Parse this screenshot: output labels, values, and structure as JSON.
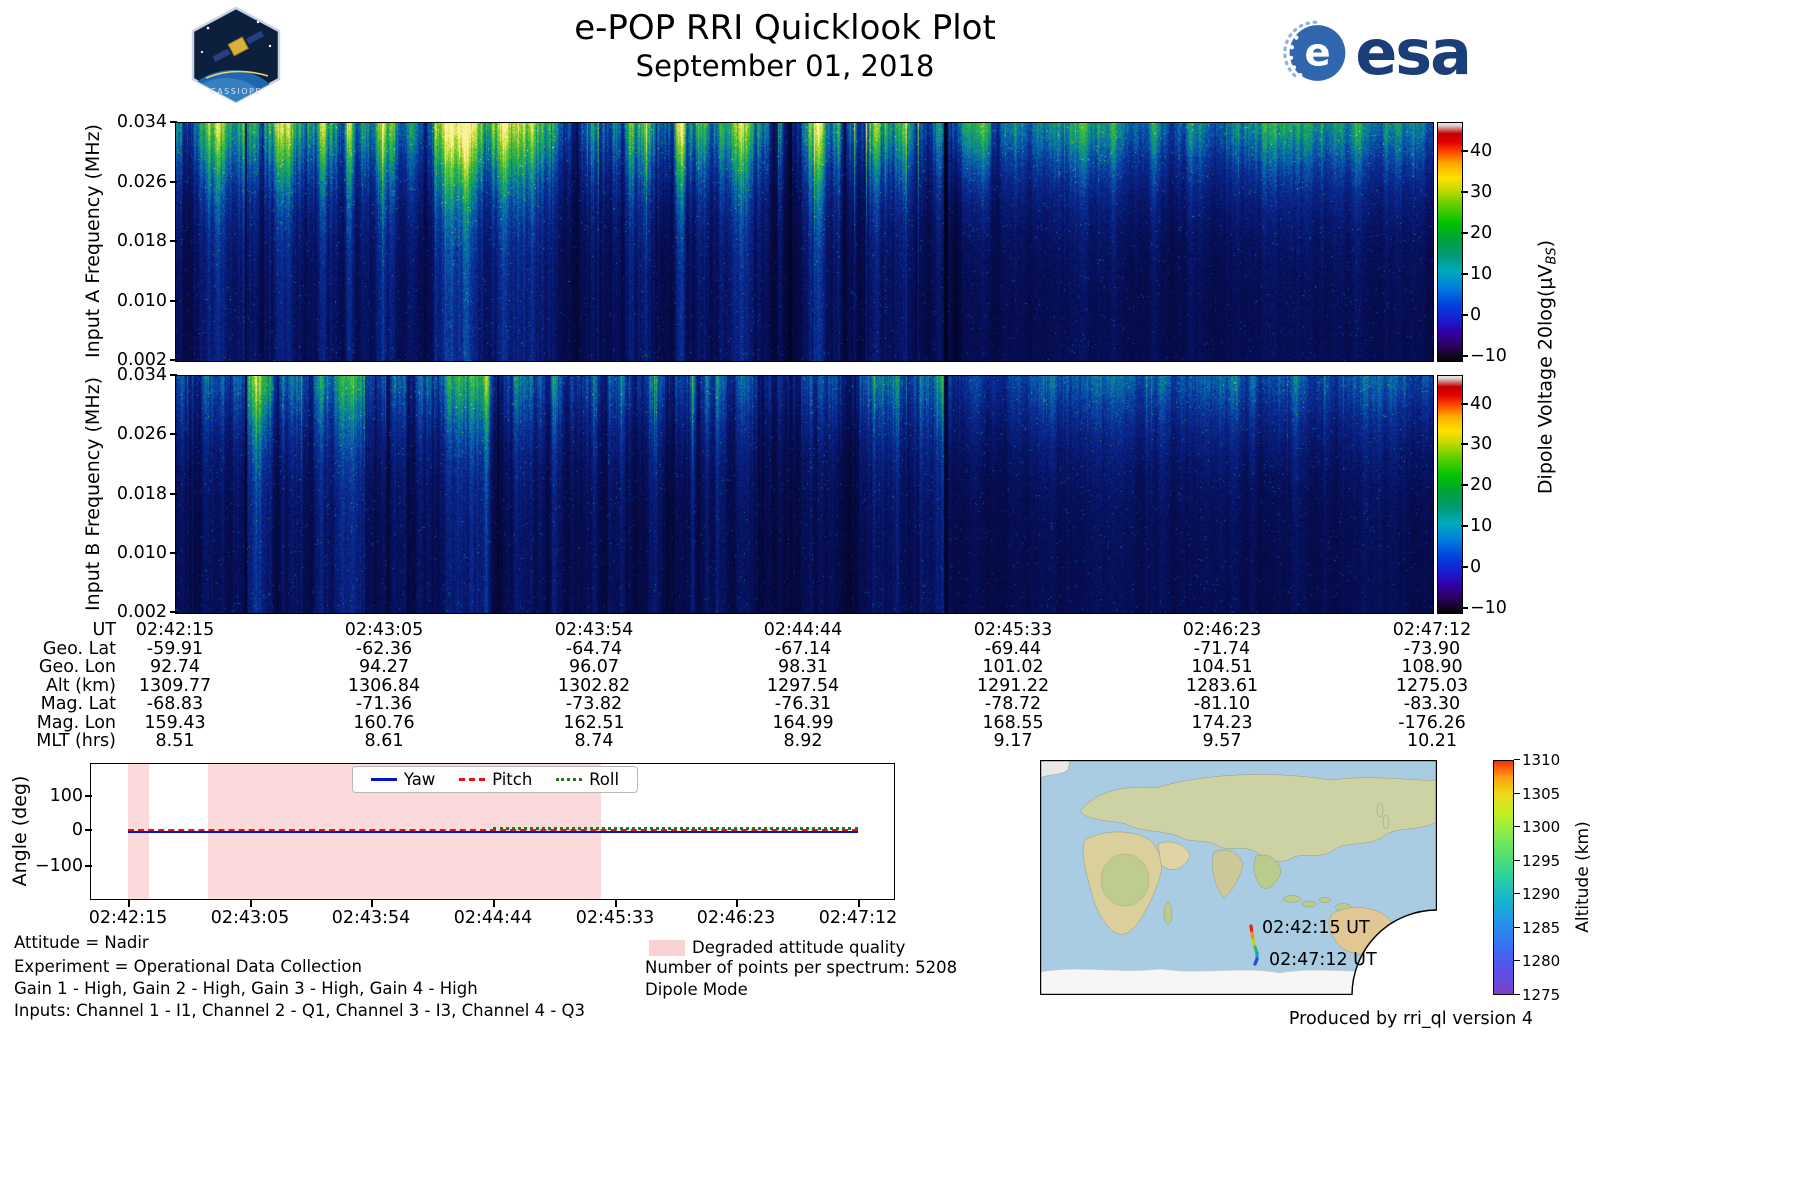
{
  "header": {
    "title": "e-POP RRI Quicklook Plot",
    "date": "September 01, 2018",
    "mission_patch": "CASSIOPE",
    "esa_logo": "esa",
    "esa_blue": "#1c3e78"
  },
  "spectrograms": {
    "panel_a": {
      "ylabel": "Input A Frequency (MHz)",
      "yticks": [
        "0.034",
        "0.026",
        "0.018",
        "0.010",
        "0.002"
      ]
    },
    "panel_b": {
      "ylabel": "Input B Frequency (MHz)",
      "yticks": [
        "0.034",
        "0.026",
        "0.018",
        "0.010",
        "0.002"
      ]
    },
    "colorbar": {
      "ticks": [
        "40",
        "30",
        "20",
        "10",
        "0",
        "−10"
      ],
      "label_prefix": "Dipole Voltage 20log(μV",
      "label_sub": "BS",
      "label_suffix": ")"
    }
  },
  "ephemeris": {
    "rows": [
      {
        "label": "UT",
        "values": [
          "02:42:15",
          "02:43:05",
          "02:43:54",
          "02:44:44",
          "02:45:33",
          "02:46:23",
          "02:47:12"
        ]
      },
      {
        "label": "Geo. Lat",
        "values": [
          "-59.91",
          "-62.36",
          "-64.74",
          "-67.14",
          "-69.44",
          "-71.74",
          "-73.90"
        ]
      },
      {
        "label": "Geo. Lon",
        "values": [
          "92.74",
          "94.27",
          "96.07",
          "98.31",
          "101.02",
          "104.51",
          "108.90"
        ]
      },
      {
        "label": "Alt (km)",
        "values": [
          "1309.77",
          "1306.84",
          "1302.82",
          "1297.54",
          "1291.22",
          "1283.61",
          "1275.03"
        ]
      },
      {
        "label": "Mag. Lat",
        "values": [
          "-68.83",
          "-71.36",
          "-73.82",
          "-76.31",
          "-78.72",
          "-81.10",
          "-83.30"
        ]
      },
      {
        "label": "Mag. Lon",
        "values": [
          "159.43",
          "160.76",
          "162.51",
          "164.99",
          "168.55",
          "174.23",
          "-176.26"
        ]
      },
      {
        "label": "MLT (hrs)",
        "values": [
          "8.51",
          "8.61",
          "8.74",
          "8.92",
          "9.17",
          "9.57",
          "10.21"
        ]
      }
    ]
  },
  "attitude": {
    "ylabel": "Angle (deg)",
    "yticks": [
      "100",
      "0",
      "−100"
    ],
    "xticks": [
      "02:42:15",
      "02:43:05",
      "02:43:54",
      "02:44:44",
      "02:45:33",
      "02:46:23",
      "02:47:12"
    ],
    "legend": [
      {
        "label": "Yaw",
        "color": "#0014c8",
        "style": "solid"
      },
      {
        "label": "Pitch",
        "color": "#dd1515",
        "style": "dashed"
      },
      {
        "label": "Roll",
        "color": "#1c7a1c",
        "style": "dotted"
      }
    ],
    "degraded_color": "#f9d3d3"
  },
  "map": {
    "track_start_label": "02:42:15 UT",
    "track_end_label": "02:47:12 UT",
    "colorbar_label": "Altitude (km)",
    "colorbar_ticks": [
      "1310",
      "1305",
      "1300",
      "1295",
      "1290",
      "1285",
      "1280",
      "1275"
    ]
  },
  "footnotes": {
    "attitude": "Attitude = Nadir",
    "experiment": "Experiment = Operational Data Collection",
    "gains": "Gain 1 - High, Gain 2 - High, Gain 3 - High, Gain 4 - High",
    "inputs": "Inputs: Channel 1 - I1, Channel 2 - Q1, Channel 3 - I3, Channel 4 - Q3",
    "degraded_legend": "Degraded attitude quality",
    "points": "Number of points per spectrum: 5208",
    "mode": "Dipole Mode",
    "produced": "Produced by rri_ql version 4"
  },
  "chart_data": [
    {
      "type": "heatmap",
      "title": "Input A spectrogram",
      "xlabel": "UT",
      "ylabel": "Input A Frequency (MHz)",
      "x_ticks": [
        "02:42:15",
        "02:43:05",
        "02:43:54",
        "02:44:44",
        "02:45:33",
        "02:46:23",
        "02:47:12"
      ],
      "ylim_mhz": [
        0.002,
        0.034
      ],
      "y_ticks_mhz": [
        0.034,
        0.026,
        0.018,
        0.01,
        0.002
      ],
      "value_label": "Dipole Voltage 20log(μV_BS)",
      "colorbar_ticks": [
        40,
        30,
        20,
        10,
        0,
        -10
      ],
      "value_range_est": [
        -11,
        47
      ],
      "summary": "Dark-blue broadband noise floor (~-5 to 5) above ~0.012 MHz with dense vertical striations; enhanced green/yellow emission (~15-30) below ~0.010 MHz; bright cyan-green column band near 02:43:20-02:43:30; narrow dark dropout line near 02:45:20; smoother blue region with bright yellow low-frequency patch just after 02:45:25."
    },
    {
      "type": "heatmap",
      "title": "Input B spectrogram",
      "xlabel": "UT",
      "ylabel": "Input B Frequency (MHz)",
      "x_ticks": [
        "02:42:15",
        "02:43:05",
        "02:43:54",
        "02:44:44",
        "02:45:33",
        "02:46:23",
        "02:47:12"
      ],
      "ylim_mhz": [
        0.002,
        0.034
      ],
      "y_ticks_mhz": [
        0.034,
        0.026,
        0.018,
        0.01,
        0.002
      ],
      "value_label": "Dipole Voltage 20log(μV_BS)",
      "colorbar_ticks": [
        40,
        30,
        20,
        10,
        0,
        -10
      ],
      "value_range_est": [
        -11,
        47
      ],
      "summary": "Same pattern as Input A but dimmer overall: green band below ~0.010 MHz weaker (~10-20), identical vertical striations, bright band near 02:43:20 and dark dropout near 02:45:20."
    },
    {
      "type": "line",
      "title": "Spacecraft attitude angles vs UT",
      "ylabel": "Angle (deg)",
      "ylim": [
        -195,
        195
      ],
      "y_ticks": [
        100,
        0,
        -100
      ],
      "x": [
        "02:42:15",
        "02:43:05",
        "02:43:54",
        "02:44:44",
        "02:45:33",
        "02:46:23",
        "02:47:12"
      ],
      "series": [
        {
          "name": "Yaw",
          "values": [
            0,
            0,
            0,
            0,
            0,
            0,
            0
          ]
        },
        {
          "name": "Pitch",
          "values": [
            0,
            0,
            0,
            0,
            0,
            0,
            0
          ]
        },
        {
          "name": "Roll",
          "values": [
            0,
            0,
            0,
            0,
            0,
            0,
            0
          ]
        }
      ],
      "legend_position": "top center",
      "grid": false,
      "shaded_regions_label": "Degraded attitude quality",
      "shaded_regions_x": [
        [
          "02:42:15",
          "02:42:24"
        ],
        [
          "02:42:48",
          "02:45:28"
        ]
      ]
    },
    {
      "type": "table",
      "title": "Ephemeris at tick times",
      "columns": [
        "02:42:15",
        "02:43:05",
        "02:43:54",
        "02:44:44",
        "02:45:33",
        "02:46:23",
        "02:47:12"
      ],
      "rows": [
        {
          "label": "Geo. Lat",
          "values": [
            -59.91,
            -62.36,
            -64.74,
            -67.14,
            -69.44,
            -71.74,
            -73.9
          ]
        },
        {
          "label": "Geo. Lon",
          "values": [
            92.74,
            94.27,
            96.07,
            98.31,
            101.02,
            104.51,
            108.9
          ]
        },
        {
          "label": "Alt (km)",
          "values": [
            1309.77,
            1306.84,
            1302.82,
            1297.54,
            1291.22,
            1283.61,
            1275.03
          ]
        },
        {
          "label": "Mag. Lat",
          "values": [
            -68.83,
            -71.36,
            -73.82,
            -76.31,
            -78.72,
            -81.1,
            -83.3
          ]
        },
        {
          "label": "Mag. Lon",
          "values": [
            159.43,
            160.76,
            162.51,
            164.99,
            168.55,
            174.23,
            -176.26
          ]
        },
        {
          "label": "MLT (hrs)",
          "values": [
            8.51,
            8.61,
            8.74,
            8.92,
            9.17,
            9.57,
            10.21
          ]
        }
      ]
    },
    {
      "type": "map",
      "title": "Ground track, Southern Indian Ocean near Antarctica",
      "colorbar_label": "Altitude (km)",
      "colorbar_ticks": [
        1310,
        1305,
        1300,
        1295,
        1290,
        1285,
        1280,
        1275
      ],
      "track": [
        {
          "ut": "02:42:15 UT",
          "alt_km": 1309.77
        },
        {
          "ut": "02:47:12 UT",
          "alt_km": 1275.03
        }
      ]
    }
  ]
}
